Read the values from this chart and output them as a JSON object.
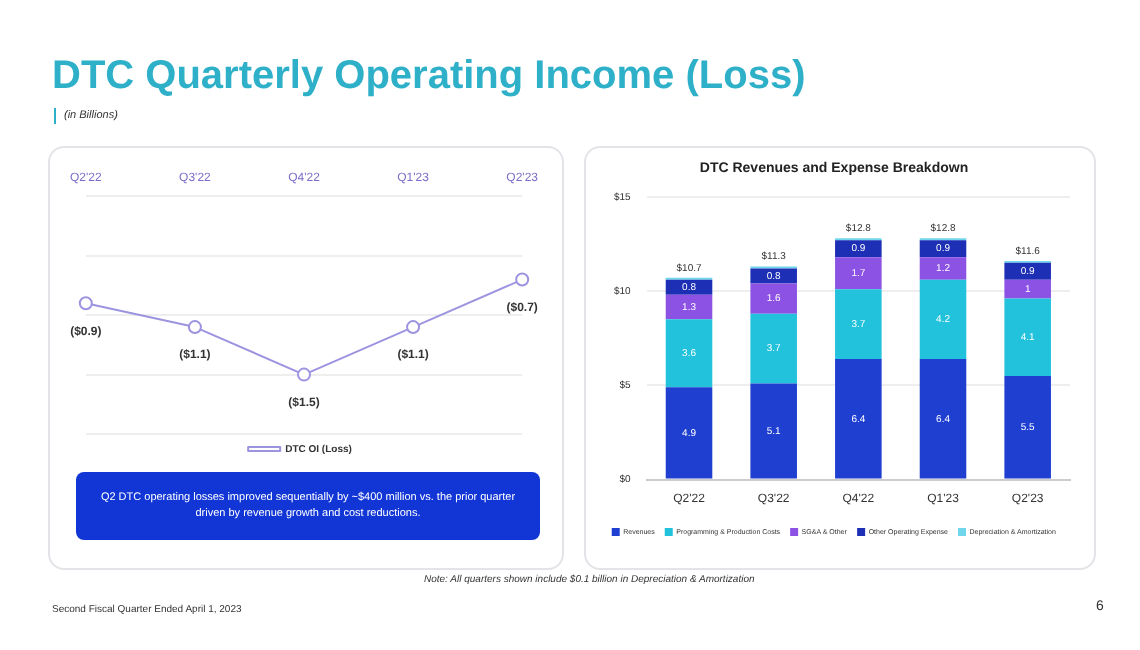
{
  "chart_data": [
    {
      "type": "line",
      "title": "DTC Quarterly Operating Income (Loss)",
      "subtitle": "(in Billions)",
      "categories": [
        "Q2'22",
        "Q3'22",
        "Q4'22",
        "Q1'23",
        "Q2'23"
      ],
      "series": [
        {
          "name": "DTC OI (Loss)",
          "color": "#9d94e0",
          "values": [
            -0.9,
            -1.1,
            -1.5,
            -1.1,
            -0.7
          ],
          "value_labels": [
            "($0.9)",
            "($1.1)",
            "($1.5)",
            "($1.1)",
            "($0.7)"
          ]
        }
      ],
      "ylim": [
        -2,
        0
      ],
      "yticks": [
        {
          "value": -2,
          "label": null
        },
        {
          "value": -1.5,
          "label": null
        },
        {
          "value": -1,
          "label": null
        },
        {
          "value": -0.5,
          "label": null
        },
        {
          "value": 0,
          "label": null
        }
      ],
      "tick_labels": "x",
      "grid": "y",
      "marker": "circle",
      "legend": "bottom",
      "annotations": [
        "Q2 DTC operating losses improved sequentially by ~$400 million vs. the prior quarter driven by revenue growth and cost reductions."
      ]
    },
    {
      "type": "bar",
      "stacked": true,
      "title": "DTC Revenues and Expense Breakdown",
      "categories": [
        "Q2'22",
        "Q3'22",
        "Q4'22",
        "Q1'23",
        "Q2'23"
      ],
      "series": [
        {
          "name": "Revenues",
          "color": "#1f3fd1",
          "values": [
            4.9,
            5.1,
            6.4,
            6.4,
            5.5
          ],
          "value_labels": [
            "4.9",
            "5.1",
            "6.4",
            "6.4",
            "5.5"
          ]
        },
        {
          "name": "Programming & Production Costs",
          "color": "#22c2dc",
          "values": [
            3.6,
            3.7,
            3.7,
            4.2,
            4.1
          ],
          "value_labels": [
            "3.6",
            "3.7",
            "3.7",
            "4.2",
            "4.1"
          ]
        },
        {
          "name": "SG&A & Other",
          "color": "#8c52e4",
          "values": [
            1.3,
            1.6,
            1.7,
            1.2,
            1
          ],
          "value_labels": [
            "1.3",
            "1.6",
            "1.7",
            "1.2",
            "1"
          ]
        },
        {
          "name": "Other Operating Expense",
          "color": "#1c2fb5",
          "values": [
            0.8,
            0.8,
            0.9,
            0.9,
            0.9
          ],
          "value_labels": [
            "0.8",
            "0.8",
            "0.9",
            "0.9",
            "0.9"
          ]
        },
        {
          "name": "Depreciation & Amortization",
          "color": "#6fd6ec",
          "values": [
            0.1,
            0.1,
            0.1,
            0.1,
            0.1
          ]
        }
      ],
      "totals": [
        "$10.7",
        "$11.3",
        "$12.8",
        "$12.8",
        "$11.6"
      ],
      "ylim": [
        0,
        15
      ],
      "yticks": [
        {
          "value": 0,
          "label": "$0"
        },
        {
          "value": 5,
          "label": "$5"
        },
        {
          "value": 10,
          "label": "$10"
        },
        {
          "value": 15,
          "label": "$15"
        }
      ],
      "grid": "y",
      "legend": "bottom",
      "annotations": [
        "Note: All quarters shown include $0.1 billion in Depreciation & Amortization",
        "Second Fiscal Quarter Ended April 1, 2023",
        "6"
      ]
    }
  ]
}
